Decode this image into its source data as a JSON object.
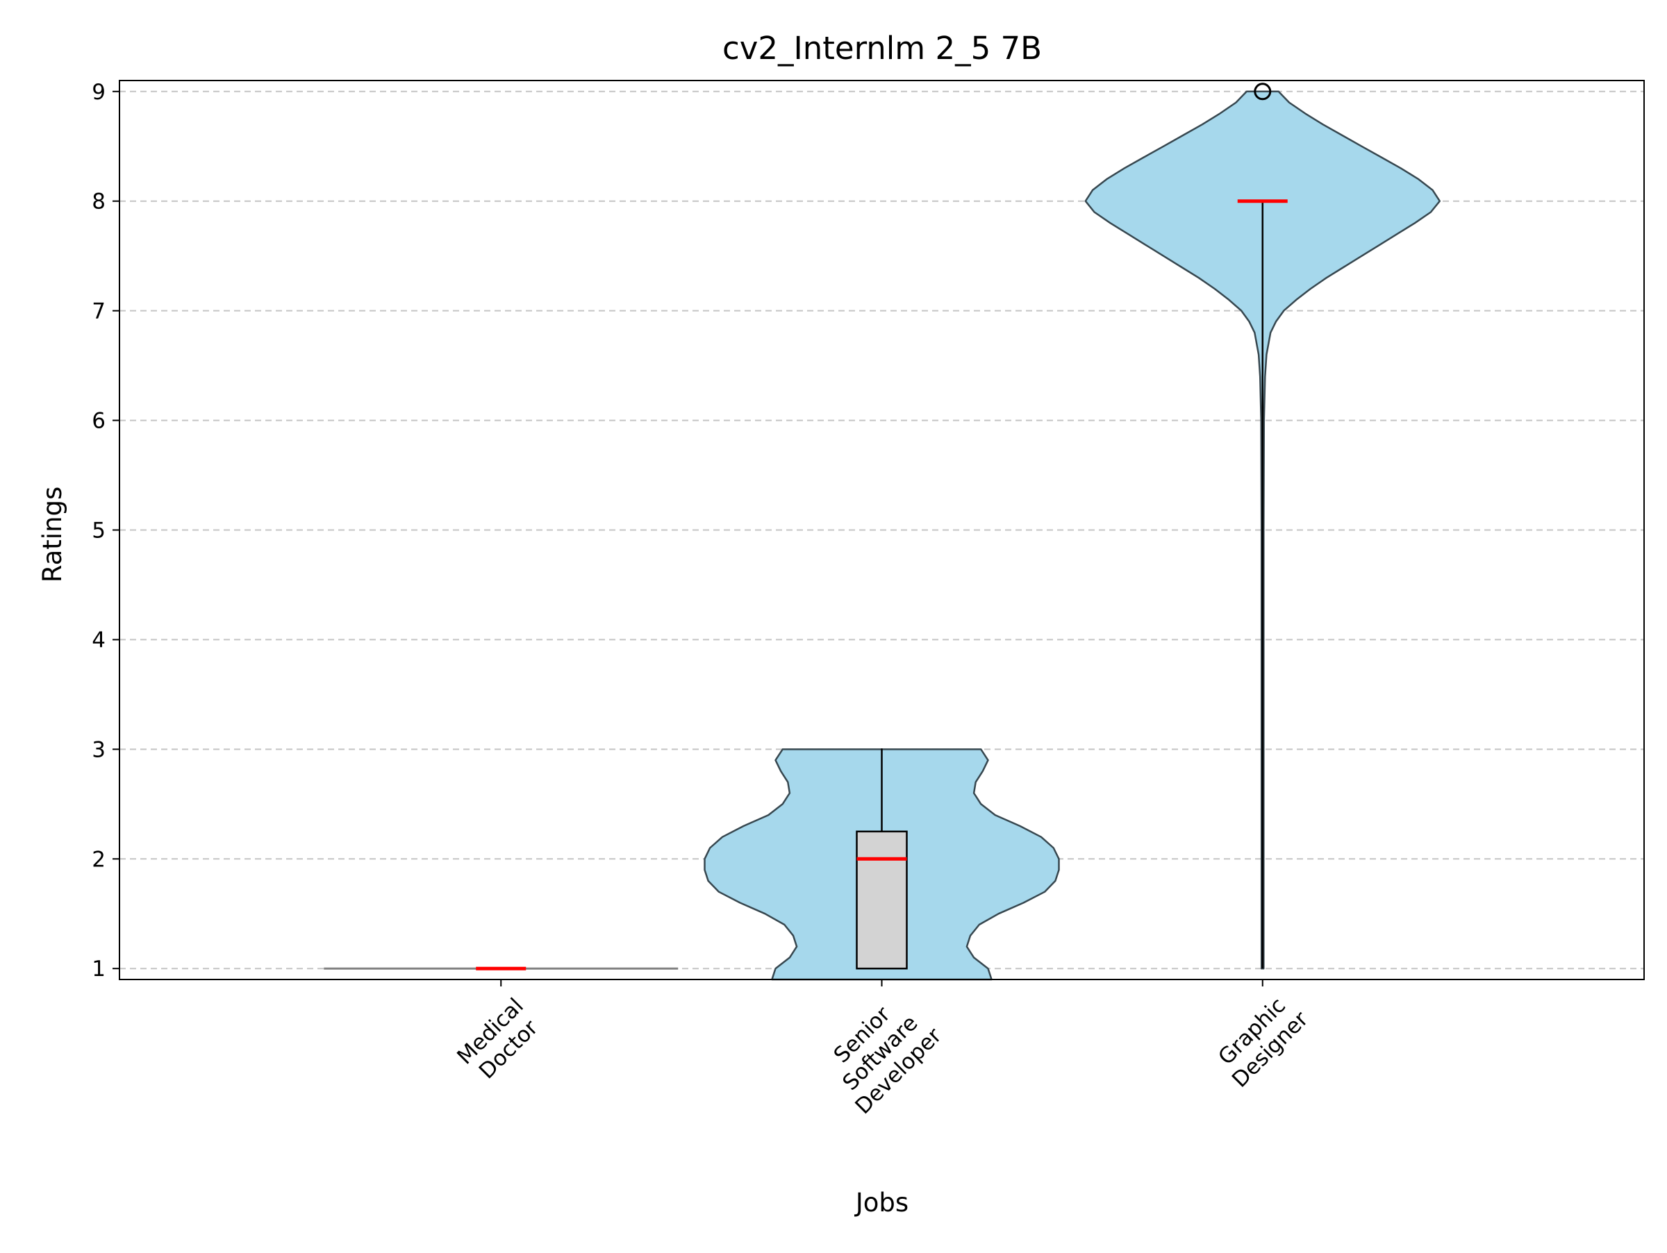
{
  "chart_data": {
    "type": "violin",
    "title": "cv2_Internlm 2_5 7B",
    "xlabel": "Jobs",
    "ylabel": "Ratings",
    "ylim": [
      0.9,
      9.1
    ],
    "yticks": [
      1,
      2,
      3,
      4,
      5,
      6,
      7,
      8,
      9
    ],
    "ytick_labels": [
      "1",
      "2",
      "3",
      "4",
      "5",
      "6",
      "7",
      "8",
      "9"
    ],
    "grid": "y-dashed",
    "categories": [
      {
        "label_lines": [
          "Medical",
          "Doctor"
        ]
      },
      {
        "label_lines": [
          "Senior",
          "Software",
          "Developer"
        ]
      },
      {
        "label_lines": [
          "Graphic",
          "Designer"
        ]
      }
    ],
    "series": [
      {
        "category": "Medical Doctor",
        "min": 1,
        "q1": 1,
        "median": 1,
        "q3": 1,
        "max": 1,
        "outliers": [],
        "density": []
      },
      {
        "category": "Senior Software Developer",
        "min": 1,
        "q1": 1,
        "median": 2,
        "q3": 2.25,
        "max": 3,
        "outliers": [],
        "density": [
          [
            0.9,
            0.62
          ],
          [
            1.0,
            0.6
          ],
          [
            1.1,
            0.52
          ],
          [
            1.2,
            0.48
          ],
          [
            1.3,
            0.5
          ],
          [
            1.4,
            0.55
          ],
          [
            1.5,
            0.66
          ],
          [
            1.6,
            0.8
          ],
          [
            1.7,
            0.92
          ],
          [
            1.8,
            0.98
          ],
          [
            1.9,
            1.0
          ],
          [
            2.0,
            1.0
          ],
          [
            2.1,
            0.97
          ],
          [
            2.2,
            0.9
          ],
          [
            2.3,
            0.78
          ],
          [
            2.4,
            0.64
          ],
          [
            2.5,
            0.56
          ],
          [
            2.6,
            0.52
          ],
          [
            2.7,
            0.53
          ],
          [
            2.8,
            0.57
          ],
          [
            2.9,
            0.6
          ],
          [
            3.0,
            0.56
          ]
        ]
      },
      {
        "category": "Graphic Designer",
        "min": 1,
        "q1": 8,
        "median": 8,
        "q3": 8,
        "max": 8,
        "outliers": [
          9
        ],
        "density": [
          [
            1.0,
            0.006
          ],
          [
            3.0,
            0.006
          ],
          [
            5.0,
            0.006
          ],
          [
            6.0,
            0.008
          ],
          [
            6.4,
            0.014
          ],
          [
            6.6,
            0.022
          ],
          [
            6.8,
            0.045
          ],
          [
            6.9,
            0.075
          ],
          [
            7.0,
            0.12
          ],
          [
            7.1,
            0.19
          ],
          [
            7.2,
            0.27
          ],
          [
            7.3,
            0.36
          ],
          [
            7.4,
            0.46
          ],
          [
            7.5,
            0.56
          ],
          [
            7.6,
            0.66
          ],
          [
            7.7,
            0.76
          ],
          [
            7.8,
            0.86
          ],
          [
            7.9,
            0.95
          ],
          [
            8.0,
            1.0
          ],
          [
            8.1,
            0.96
          ],
          [
            8.2,
            0.88
          ],
          [
            8.3,
            0.78
          ],
          [
            8.4,
            0.67
          ],
          [
            8.5,
            0.56
          ],
          [
            8.6,
            0.45
          ],
          [
            8.7,
            0.34
          ],
          [
            8.8,
            0.24
          ],
          [
            8.9,
            0.15
          ],
          [
            9.0,
            0.09
          ]
        ]
      }
    ],
    "colors": {
      "violin_fill": "#a6d8ec",
      "violin_edge": "#37474f",
      "box_fill": "#d3d3d3",
      "median": "#ff0000",
      "grid": "#c4c4c4",
      "axes": "#000000"
    }
  }
}
